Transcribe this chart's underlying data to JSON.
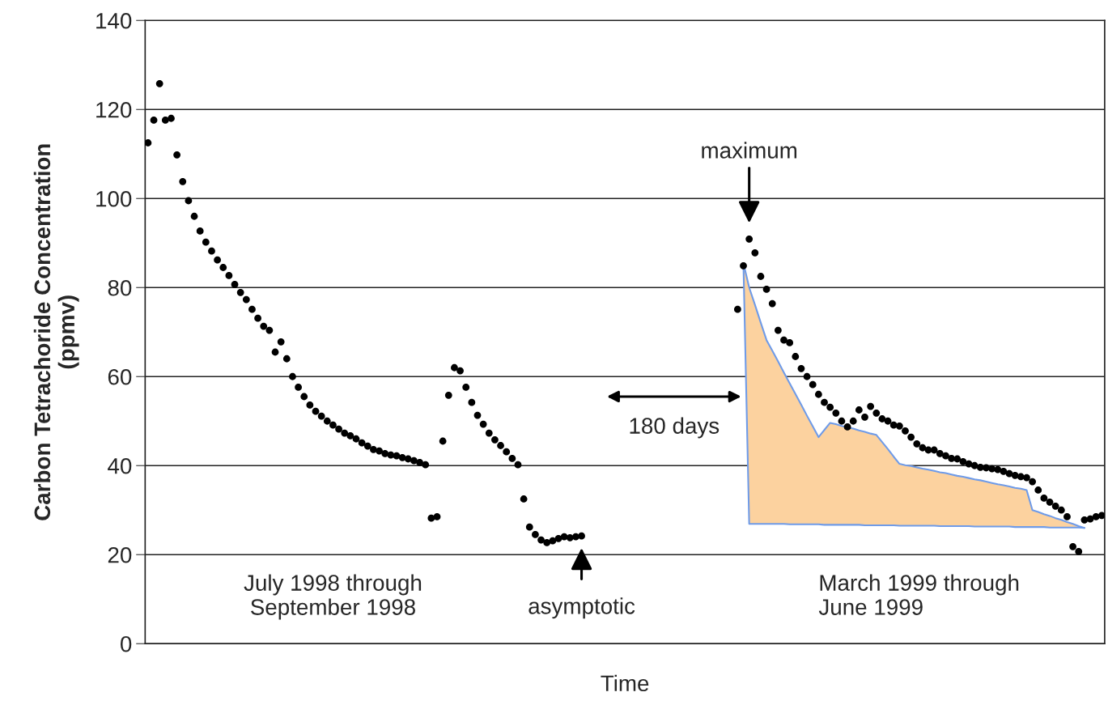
{
  "chart_data": {
    "type": "scatter",
    "xlabel": "Time",
    "ylabel": "Carbon Tetrachoride Concentration\n(ppmv)",
    "categories": [
      null,
      null,
      null,
      null,
      null,
      null,
      null,
      null,
      null,
      null,
      null,
      null,
      null,
      null,
      null,
      null,
      null,
      null,
      null,
      null,
      null,
      null,
      null,
      null,
      null,
      null,
      null,
      null,
      null,
      null,
      null,
      null,
      null,
      null,
      null,
      null,
      null,
      null,
      null,
      null,
      null,
      null,
      null,
      null,
      null,
      null,
      null,
      null,
      null,
      null,
      null,
      null,
      null,
      null,
      null,
      null,
      null,
      null,
      null,
      null,
      null,
      null,
      null,
      null,
      null,
      null,
      null,
      null,
      null,
      null,
      null,
      null,
      null,
      null,
      null,
      null,
      null,
      null,
      null,
      null,
      null,
      null,
      null,
      null,
      null,
      null,
      null,
      null,
      null,
      null,
      null,
      null,
      null,
      null,
      null,
      null,
      null,
      null,
      null,
      null,
      null,
      null,
      null,
      null,
      null,
      null,
      null,
      null,
      null,
      null,
      null,
      null,
      null,
      null,
      null,
      null,
      null,
      null,
      null,
      null,
      null,
      null,
      null,
      null,
      null,
      null,
      null,
      null,
      null,
      null,
      null,
      null,
      null,
      null,
      null,
      null,
      null,
      null,
      null,
      null,
      null,
      null,
      null,
      null,
      null,
      null,
      null,
      null,
      null,
      null,
      null,
      null,
      null,
      null,
      null,
      null,
      null,
      null,
      null,
      null,
      null,
      null,
      null,
      null,
      null,
      null
    ],
    "series": [
      {
        "type": "line",
        "color": "#6f9be8",
        "marker": "none",
        "line_style": "solid",
        "values": [
          null,
          null,
          null,
          null,
          null,
          null,
          null,
          null,
          null,
          null,
          null,
          null,
          null,
          null,
          null,
          null,
          null,
          null,
          null,
          null,
          null,
          null,
          null,
          null,
          null,
          null,
          null,
          null,
          null,
          null,
          null,
          null,
          null,
          null,
          null,
          null,
          null,
          null,
          null,
          null,
          null,
          null,
          null,
          null,
          null,
          null,
          null,
          null,
          null,
          null,
          null,
          null,
          null,
          null,
          null,
          null,
          null,
          null,
          null,
          null,
          null,
          null,
          null,
          null,
          null,
          null,
          null,
          null,
          null,
          null,
          null,
          null,
          null,
          null,
          null,
          null,
          null,
          null,
          null,
          null,
          null,
          null,
          null,
          null,
          null,
          null,
          null,
          null,
          null,
          null,
          null,
          null,
          null,
          null,
          null,
          null,
          null,
          null,
          null,
          null,
          null,
          null,
          null,
          85.5,
          80,
          76.1,
          72.1,
          68.2,
          65.8,
          63.4,
          60.9,
          58.5,
          56.1,
          53.7,
          51.2,
          48.8,
          46.4,
          48.0,
          49.6,
          49.3,
          48.9,
          48.6,
          48.3,
          47.9,
          47.6,
          47.2,
          46.9,
          45.3,
          43.7,
          42.0,
          40.4,
          40.1,
          39.9,
          39.6,
          39.3,
          39.1,
          38.8,
          38.5,
          38.3,
          38.0,
          37.7,
          37.5,
          37.2,
          36.9,
          36.7,
          36.4,
          36.1,
          35.8,
          35.6,
          35.3,
          35.0,
          34.8,
          34.5,
          30,
          29.6,
          29.1,
          28.7,
          28.2,
          27.8,
          27.3,
          26.9,
          26.4,
          26,
          null,
          null,
          null
        ],
        "upper": [
          null,
          null,
          null,
          null,
          null,
          null,
          null,
          null,
          null,
          null,
          null,
          null,
          null,
          null,
          null,
          null,
          null,
          null,
          null,
          null,
          null,
          null,
          null,
          null,
          null,
          null,
          null,
          null,
          null,
          null,
          null,
          null,
          null,
          null,
          null,
          null,
          null,
          null,
          null,
          null,
          null,
          null,
          null,
          null,
          null,
          null,
          null,
          null,
          null,
          null,
          null,
          null,
          null,
          null,
          null,
          null,
          null,
          null,
          null,
          null,
          null,
          null,
          null,
          null,
          null,
          null,
          null,
          null,
          null,
          null,
          null,
          null,
          null,
          null,
          null,
          null,
          null,
          null,
          null,
          null,
          null,
          null,
          null,
          null,
          null,
          null,
          null,
          null,
          null,
          null,
          null,
          null,
          null,
          null,
          null,
          null,
          null,
          null,
          null,
          null,
          null,
          null,
          null,
          85.5,
          80,
          76.1,
          72.1,
          68.2,
          65.8,
          63.4,
          60.9,
          58.5,
          56.1,
          53.7,
          51.2,
          48.8,
          46.4,
          48.0,
          49.6,
          49.3,
          48.9,
          48.6,
          48.3,
          47.9,
          47.6,
          47.2,
          46.9,
          45.3,
          43.7,
          42.0,
          40.4,
          40.1,
          39.9,
          39.6,
          39.3,
          39.1,
          38.8,
          38.5,
          38.3,
          38.0,
          37.7,
          37.5,
          37.2,
          36.9,
          36.7,
          36.4,
          36.1,
          35.8,
          35.6,
          35.3,
          35.0,
          34.8,
          34.5,
          30,
          29.6,
          29.1,
          28.7,
          28.2,
          27.8,
          27.3,
          26.9,
          26.4,
          26,
          null,
          null,
          null
        ],
        "lower": [
          null,
          null,
          null,
          null,
          null,
          null,
          null,
          null,
          null,
          null,
          null,
          null,
          null,
          null,
          null,
          null,
          null,
          null,
          null,
          null,
          null,
          null,
          null,
          null,
          null,
          null,
          null,
          null,
          null,
          null,
          null,
          null,
          null,
          null,
          null,
          null,
          null,
          null,
          null,
          null,
          null,
          null,
          null,
          null,
          null,
          null,
          null,
          null,
          null,
          null,
          null,
          null,
          null,
          null,
          null,
          null,
          null,
          null,
          null,
          null,
          null,
          null,
          null,
          null,
          null,
          null,
          null,
          null,
          null,
          null,
          null,
          null,
          null,
          null,
          null,
          null,
          null,
          null,
          null,
          null,
          null,
          null,
          null,
          null,
          null,
          null,
          null,
          null,
          null,
          null,
          null,
          null,
          null,
          null,
          null,
          null,
          null,
          null,
          null,
          null,
          null,
          null,
          null,
          85.5,
          26.9,
          26.9,
          26.9,
          26.9,
          26.9,
          26.9,
          26.9,
          26.8,
          26.8,
          26.8,
          26.8,
          26.8,
          26.8,
          26.7,
          26.7,
          26.7,
          26.7,
          26.7,
          26.7,
          26.7,
          26.6,
          26.6,
          26.6,
          26.6,
          26.6,
          26.6,
          26.5,
          26.5,
          26.5,
          26.5,
          26.5,
          26.5,
          26.5,
          26.4,
          26.4,
          26.4,
          26.4,
          26.4,
          26.4,
          26.3,
          26.3,
          26.3,
          26.3,
          26.3,
          26.3,
          26.3,
          26.2,
          26.2,
          26.2,
          26.2,
          26.2,
          26.2,
          26.1,
          26.1,
          26.1,
          26.1,
          26.1,
          26.1,
          26.0,
          null,
          null,
          null
        ]
      },
      {
        "color": "#000000",
        "marker": "circle",
        "values": [
          112.5,
          117.6,
          125.8,
          117.6,
          118,
          109.8,
          103.8,
          99.5,
          96,
          92.7,
          90.2,
          88.2,
          86.2,
          84.5,
          82.7,
          80.7,
          78.9,
          77.3,
          75.1,
          73.1,
          71.3,
          70.4,
          65.5,
          67.8,
          64,
          60,
          57.6,
          55.5,
          53.6,
          52.2,
          51.1,
          50,
          49.1,
          48.2,
          47.3,
          46.7,
          46,
          45.1,
          44.4,
          43.6,
          43.3,
          42.7,
          42.4,
          42.2,
          41.8,
          41.5,
          41.1,
          40.7,
          40.2,
          28.2,
          28.5,
          45.5,
          55.8,
          62,
          61.3,
          57.6,
          54.2,
          51.3,
          49.3,
          47.3,
          45.8,
          44.5,
          43.1,
          41.6,
          40.2,
          32.5,
          26.2,
          24.5,
          23.3,
          22.7,
          23.1,
          23.6,
          24,
          23.8,
          24,
          24.2,
          null,
          null,
          null,
          null,
          null,
          null,
          null,
          null,
          null,
          null,
          null,
          null,
          null,
          null,
          null,
          null,
          null,
          null,
          null,
          null,
          null,
          null,
          null,
          null,
          null,
          null,
          75.1,
          84.9,
          90.9,
          87.8,
          82.5,
          79.6,
          76.4,
          70.4,
          68.2,
          67.6,
          64.5,
          61.8,
          60,
          58.2,
          56,
          54.2,
          53.1,
          51.8,
          50,
          48.7,
          50,
          52.5,
          50.9,
          53.3,
          51.8,
          50.5,
          50,
          49.1,
          48.9,
          47.8,
          46.4,
          44.9,
          44,
          43.5,
          43.5,
          42.7,
          42.2,
          41.6,
          41.5,
          40.9,
          40.4,
          40,
          39.6,
          39.5,
          39.3,
          39.1,
          38.7,
          38.2,
          37.8,
          37.5,
          37.3,
          36.4,
          34.5,
          32.7,
          31.8,
          30.9,
          30,
          28.5,
          21.8,
          20.7,
          27.8,
          28,
          28.5,
          28.8
        ]
      }
    ],
    "ylim": [
      0,
      140
    ],
    "yticks": [
      0,
      20,
      40,
      60,
      80,
      100,
      120,
      140
    ],
    "grid": "y",
    "tick_labels": "y",
    "annotations": [
      "maximum",
      "180 days",
      "asymptotic",
      "July 1998 through\nSeptember 1998",
      "March 1999 through\nJune 1999"
    ]
  }
}
